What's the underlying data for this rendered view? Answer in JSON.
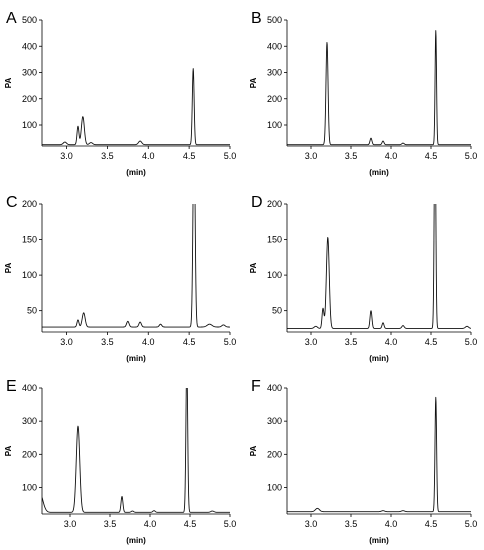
{
  "chart_data": [
    {
      "panel": "A",
      "type": "line",
      "xlabel": "(min)",
      "ylabel": "PA",
      "xlim": [
        2.7,
        5.0
      ],
      "ylim": [
        20,
        500
      ],
      "xticks": [
        3.0,
        3.5,
        4.0,
        4.5,
        5.0
      ],
      "yticks": [
        100,
        200,
        300,
        400,
        500
      ],
      "baseline": 25,
      "peaks": [
        {
          "x": 2.98,
          "height": 10,
          "width": 0.02
        },
        {
          "x": 3.14,
          "height": 70,
          "width": 0.012
        },
        {
          "x": 3.2,
          "height": 107,
          "width": 0.018
        },
        {
          "x": 3.3,
          "height": 8,
          "width": 0.02
        },
        {
          "x": 3.9,
          "height": 14,
          "width": 0.02
        },
        {
          "x": 4.55,
          "height": 290,
          "width": 0.011
        }
      ]
    },
    {
      "panel": "B",
      "type": "line",
      "xlabel": "(min)",
      "ylabel": "PA",
      "xlim": [
        2.7,
        5.0
      ],
      "ylim": [
        20,
        500
      ],
      "xticks": [
        3.0,
        3.5,
        4.0,
        4.5,
        5.0
      ],
      "yticks": [
        100,
        200,
        300,
        400,
        500
      ],
      "baseline": 25,
      "peaks": [
        {
          "x": 3.2,
          "height": 390,
          "width": 0.013
        },
        {
          "x": 3.75,
          "height": 25,
          "width": 0.012
        },
        {
          "x": 3.9,
          "height": 14,
          "width": 0.012
        },
        {
          "x": 4.15,
          "height": 6,
          "width": 0.015
        },
        {
          "x": 4.56,
          "height": 435,
          "width": 0.009
        }
      ]
    },
    {
      "panel": "C",
      "type": "line",
      "xlabel": "(min)",
      "ylabel": "PA",
      "xlim": [
        2.7,
        5.0
      ],
      "ylim": [
        20,
        200
      ],
      "xticks": [
        3.0,
        3.5,
        4.0,
        4.5,
        5.0
      ],
      "yticks": [
        50,
        100,
        150,
        200
      ],
      "baseline": 27,
      "peaks": [
        {
          "x": 3.14,
          "height": 10,
          "width": 0.012
        },
        {
          "x": 3.21,
          "height": 20,
          "width": 0.018
        },
        {
          "x": 3.75,
          "height": 8,
          "width": 0.015
        },
        {
          "x": 3.9,
          "height": 7,
          "width": 0.015
        },
        {
          "x": 4.15,
          "height": 4,
          "width": 0.015
        },
        {
          "x": 4.56,
          "height": 280,
          "width": 0.013
        },
        {
          "x": 4.75,
          "height": 4,
          "width": 0.03
        },
        {
          "x": 4.92,
          "height": 3,
          "width": 0.02
        }
      ]
    },
    {
      "panel": "D",
      "type": "line",
      "xlabel": "(min)",
      "ylabel": "PA",
      "xlim": [
        2.7,
        5.0
      ],
      "ylim": [
        20,
        200
      ],
      "xticks": [
        3.0,
        3.5,
        4.0,
        4.5,
        5.0
      ],
      "yticks": [
        50,
        100,
        150,
        200
      ],
      "baseline": 25,
      "peaks": [
        {
          "x": 3.06,
          "height": 3,
          "width": 0.02
        },
        {
          "x": 3.15,
          "height": 28,
          "width": 0.012
        },
        {
          "x": 3.21,
          "height": 128,
          "width": 0.018
        },
        {
          "x": 3.75,
          "height": 25,
          "width": 0.012
        },
        {
          "x": 3.9,
          "height": 8,
          "width": 0.012
        },
        {
          "x": 4.15,
          "height": 4,
          "width": 0.015
        },
        {
          "x": 4.55,
          "height": 300,
          "width": 0.01
        },
        {
          "x": 4.95,
          "height": 3,
          "width": 0.02
        }
      ]
    },
    {
      "panel": "E",
      "type": "line",
      "xlabel": "(min)",
      "ylabel": "PA",
      "xlim": [
        2.65,
        5.0
      ],
      "ylim": [
        20,
        400
      ],
      "xticks": [
        3.0,
        3.5,
        4.0,
        4.5,
        5.0
      ],
      "yticks": [
        100,
        200,
        300,
        400
      ],
      "baseline": 25,
      "peaks": [
        {
          "x": 2.62,
          "height": 60,
          "width": 0.04
        },
        {
          "x": 3.1,
          "height": 260,
          "width": 0.022
        },
        {
          "x": 3.65,
          "height": 48,
          "width": 0.012
        },
        {
          "x": 3.78,
          "height": 4,
          "width": 0.015
        },
        {
          "x": 4.05,
          "height": 5,
          "width": 0.015
        },
        {
          "x": 4.46,
          "height": 450,
          "width": 0.011
        },
        {
          "x": 4.78,
          "height": 4,
          "width": 0.02
        }
      ]
    },
    {
      "panel": "F",
      "type": "line",
      "xlabel": "(min)",
      "ylabel": "PA",
      "xlim": [
        2.7,
        5.0
      ],
      "ylim": [
        20,
        400
      ],
      "xticks": [
        3.0,
        3.5,
        4.0,
        4.5,
        5.0
      ],
      "yticks": [
        100,
        200,
        300,
        400
      ],
      "baseline": 27,
      "peaks": [
        {
          "x": 3.08,
          "height": 10,
          "width": 0.025
        },
        {
          "x": 3.9,
          "height": 3,
          "width": 0.02
        },
        {
          "x": 4.15,
          "height": 3,
          "width": 0.02
        },
        {
          "x": 4.56,
          "height": 345,
          "width": 0.01
        }
      ]
    }
  ]
}
